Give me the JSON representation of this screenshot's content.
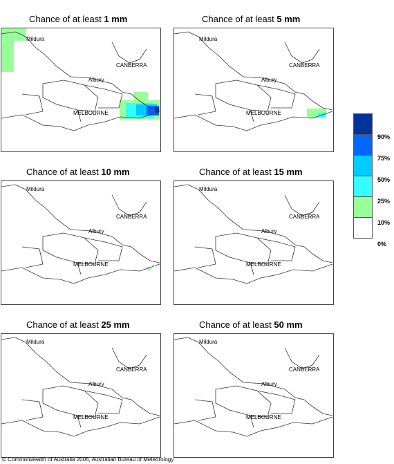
{
  "panels": [
    {
      "title_prefix": "Chance of at least ",
      "threshold": "1 mm",
      "labels": {
        "north": "Mildura",
        "canberra": "CANBERRA",
        "albury": "Albury",
        "melbourne": "MELBOURNE"
      }
    },
    {
      "title_prefix": "Chance of at least ",
      "threshold": "5 mm",
      "labels": {
        "north": "Mildura",
        "canberra": "CANBERRA",
        "albury": "Albury",
        "melbourne": "MELBOURNE"
      }
    },
    {
      "title_prefix": "Chance of at least ",
      "threshold": "10 mm",
      "labels": {
        "north": "Mildura",
        "canberra": "CANBERRA",
        "albury": "Albury",
        "melbourne": "MELBOURNE"
      }
    },
    {
      "title_prefix": "Chance of at least ",
      "threshold": "15 mm",
      "labels": {
        "north": "Mildura",
        "canberra": "CANBERRA",
        "albury": "Albury",
        "melbourne": "MELBOURNE"
      }
    },
    {
      "title_prefix": "Chance of at least ",
      "threshold": "25 mm",
      "labels": {
        "north": "Mildura",
        "canberra": "CANBERRA",
        "albury": "Albury",
        "melbourne": "MELBOURNE"
      }
    },
    {
      "title_prefix": "Chance of at least ",
      "threshold": "50 mm",
      "labels": {
        "north": "Mildura",
        "canberra": "CANBERRA",
        "albury": "Albury",
        "melbourne": "MELBOURNE"
      }
    }
  ],
  "legend": {
    "bands": [
      {
        "color": "#003399",
        "label": "90%"
      },
      {
        "color": "#0066ff",
        "label": "75%"
      },
      {
        "color": "#00ccff",
        "label": "50%"
      },
      {
        "color": "#33ffff",
        "label": "25%"
      },
      {
        "color": "#99ff99",
        "label": "10%"
      },
      {
        "color": "#ffffff",
        "label": "0%"
      }
    ]
  },
  "copyright": "© Commonwealth of Australia 2006, Australian Bureau of Meteorology"
}
